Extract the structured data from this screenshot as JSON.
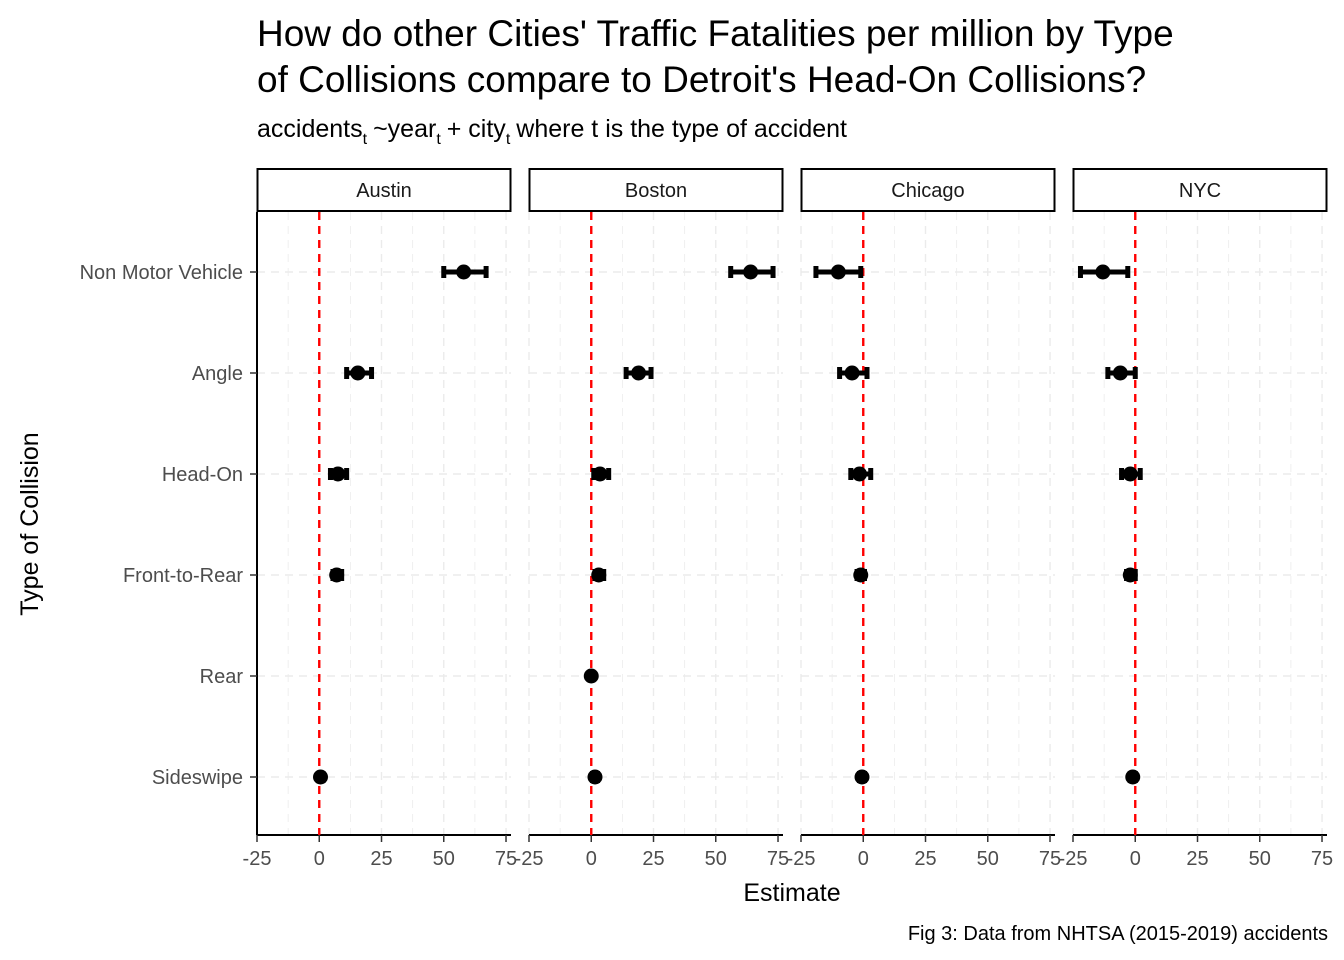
{
  "title_line1": "How do other Cities' Traffic Fatalities per million by Type",
  "title_line2": "of Collisions compare to Detroit's Head-On Collisions?",
  "subtitle": {
    "word1": "accidents",
    "sub1": "t",
    "word2": "~year",
    "sub2": "t",
    "word3": "+ city",
    "sub3": "t",
    "word4": "where t is the type of accident"
  },
  "caption": "Fig 3: Data from NHTSA (2015-2019) accidents",
  "colors": {
    "reference_line": "#ff0000",
    "points": "#000000",
    "grid": "#ebebeb"
  },
  "chart_data": {
    "type": "scatter",
    "subtype": "coefficient-plot-with-error-bars",
    "xlabel": "Estimate",
    "ylabel": "Type of Collision",
    "xlim": [
      -25,
      77
    ],
    "x_ticks": [
      -25,
      0,
      25,
      50,
      75
    ],
    "x_tick_labels": [
      "-25",
      "0",
      "25",
      "50",
      "75"
    ],
    "reference_line_x": 0,
    "categories": [
      "Non Motor Vehicle",
      "Angle",
      "Head-On",
      "Front-to-Rear",
      "Rear",
      "Sideswipe"
    ],
    "grid": "dashed",
    "panels": [
      {
        "name": "Austin",
        "points": [
          {
            "category": "Non Motor Vehicle",
            "estimate": 58,
            "low": 50,
            "high": 67
          },
          {
            "category": "Angle",
            "estimate": 15.5,
            "low": 11,
            "high": 21
          },
          {
            "category": "Head-On",
            "estimate": 7.5,
            "low": 4.5,
            "high": 11
          },
          {
            "category": "Front-to-Rear",
            "estimate": 7,
            "low": 5.5,
            "high": 9
          },
          {
            "category": "Sideswipe",
            "estimate": 0.5,
            "low": 0,
            "high": 1.5
          }
        ]
      },
      {
        "name": "Boston",
        "points": [
          {
            "category": "Non Motor Vehicle",
            "estimate": 64,
            "low": 56,
            "high": 73
          },
          {
            "category": "Angle",
            "estimate": 19,
            "low": 14,
            "high": 24
          },
          {
            "category": "Head-On",
            "estimate": 3.5,
            "low": 1,
            "high": 7
          },
          {
            "category": "Front-to-Rear",
            "estimate": 3,
            "low": 1.5,
            "high": 5
          },
          {
            "category": "Rear",
            "estimate": 0,
            "low": -0.5,
            "high": 0.5
          },
          {
            "category": "Sideswipe",
            "estimate": 1.5,
            "low": 0.5,
            "high": 2.5
          }
        ]
      },
      {
        "name": "Chicago",
        "points": [
          {
            "category": "Non Motor Vehicle",
            "estimate": -10,
            "low": -19,
            "high": -1
          },
          {
            "category": "Angle",
            "estimate": -4.5,
            "low": -9.5,
            "high": 1.5
          },
          {
            "category": "Head-On",
            "estimate": -1.5,
            "low": -5,
            "high": 3
          },
          {
            "category": "Front-to-Rear",
            "estimate": -1,
            "low": -2.5,
            "high": 0.5
          },
          {
            "category": "Sideswipe",
            "estimate": -0.5,
            "low": -1.5,
            "high": 0.5
          }
        ]
      },
      {
        "name": "NYC",
        "points": [
          {
            "category": "Non Motor Vehicle",
            "estimate": -13,
            "low": -22,
            "high": -3
          },
          {
            "category": "Angle",
            "estimate": -6,
            "low": -11,
            "high": 0
          },
          {
            "category": "Head-On",
            "estimate": -2,
            "low": -5.5,
            "high": 2
          },
          {
            "category": "Front-to-Rear",
            "estimate": -2,
            "low": -3.5,
            "high": 0
          },
          {
            "category": "Sideswipe",
            "estimate": -1,
            "low": -2,
            "high": 0
          }
        ]
      }
    ]
  }
}
